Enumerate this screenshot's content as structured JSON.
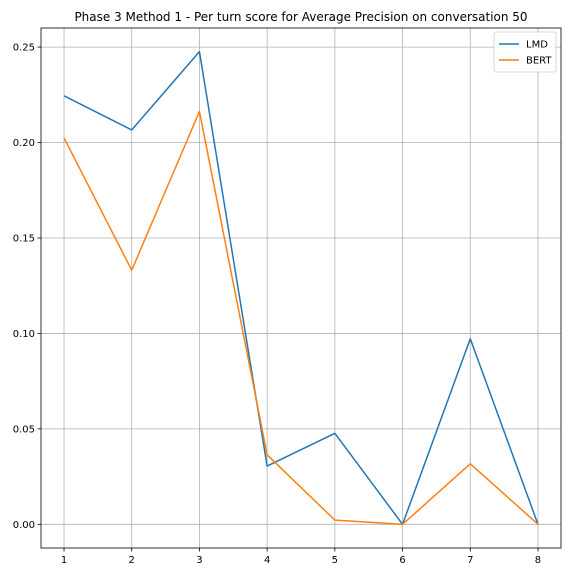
{
  "chart_data": {
    "type": "line",
    "title": "Phase 3 Method 1 - Per turn score for Average Precision on conversation 50",
    "xlabel": "",
    "ylabel": "",
    "x": [
      1,
      2,
      3,
      4,
      5,
      6,
      7,
      8
    ],
    "x_ticks": [
      "1",
      "2",
      "3",
      "4",
      "5",
      "6",
      "7",
      "8"
    ],
    "y_ticks": [
      "0.00",
      "0.05",
      "0.10",
      "0.15",
      "0.20",
      "0.25"
    ],
    "xlim": [
      0.66,
      8.34
    ],
    "ylim": [
      -0.0124,
      0.26
    ],
    "grid": true,
    "legend_position": "top-right",
    "series": [
      {
        "name": "LMD",
        "color": "#1f77b4",
        "values": [
          0.2245,
          0.2066,
          0.2476,
          0.0305,
          0.0477,
          0.0,
          0.0972,
          0.0
        ]
      },
      {
        "name": "BERT",
        "color": "#ff7f0e",
        "values": [
          0.2024,
          0.1331,
          0.2163,
          0.0364,
          0.0022,
          0.0,
          0.0317,
          0.0
        ]
      }
    ]
  }
}
